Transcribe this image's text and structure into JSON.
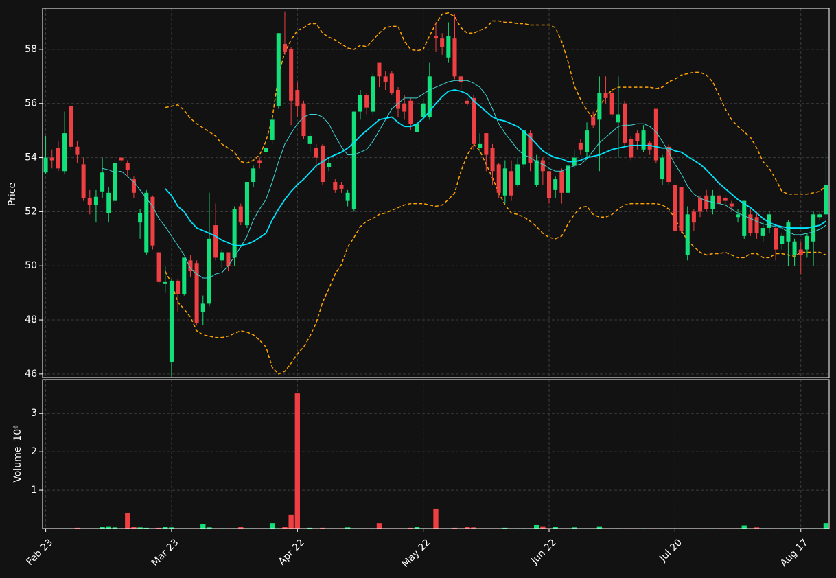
{
  "chart_data": [
    {
      "type": "candlestick",
      "ylabel": "Price",
      "ylim": [
        45.87,
        59.52
      ],
      "yticks": [
        46,
        48,
        50,
        52,
        54,
        56,
        58
      ],
      "grid": true,
      "up_color": "#12e07a",
      "down_color": "#ee3f43",
      "open": [
        53.45,
        54.0,
        54.35,
        53.5,
        55.9,
        54.4,
        53.75,
        52.5,
        52.25,
        52.75,
        51.95,
        52.4,
        54.0,
        53.8,
        53.2,
        51.6,
        50.5,
        52.55,
        50.5,
        49.35,
        46.45,
        49.45,
        48.95,
        50.2,
        50.1,
        48.3,
        48.6,
        51.5,
        50.2,
        50.5,
        50.3,
        52.2,
        51.5,
        53.1,
        53.9,
        54.2,
        54.65,
        55.9,
        58.2,
        58.0,
        56.5,
        56.0,
        54.5,
        54.35,
        54.45,
        53.65,
        53.1,
        53.0,
        52.4,
        52.1,
        55.7,
        56.3,
        55.7,
        57.5,
        57.0,
        57.1,
        56.5,
        56.0,
        56.1,
        54.95,
        55.5,
        55.5,
        58.5,
        58.4,
        57.7,
        58.4,
        57.0,
        56.1,
        56.2,
        54.35,
        54.9,
        54.35,
        53.75,
        52.6,
        53.5,
        53.0,
        53.75,
        54.9,
        53.0,
        53.9,
        53.5,
        52.8,
        53.5,
        52.7,
        53.7,
        54.55,
        54.2,
        55.5,
        55.4,
        56.4,
        56.4,
        55.3,
        56.0,
        54.7,
        54.9,
        54.3,
        54.55,
        55.8,
        53.2,
        54.4,
        53.0,
        52.9,
        50.4,
        52.0,
        52.5,
        52.6,
        52.1,
        52.6,
        52.5,
        52.3,
        51.8,
        51.1,
        51.9,
        51.8,
        51.1,
        51.4,
        51.4,
        50.8,
        50.9,
        50.4,
        50.6,
        50.6,
        50.9,
        51.8,
        51.9
      ],
      "high": [
        54.8,
        54.3,
        54.6,
        55.7,
        55.9,
        54.6,
        54.0,
        52.8,
        52.8,
        54.0,
        52.9,
        53.9,
        54.0,
        53.9,
        53.3,
        52.1,
        52.8,
        52.6,
        50.5,
        50.0,
        49.5,
        49.5,
        50.3,
        50.4,
        50.2,
        48.9,
        52.7,
        52.3,
        50.6,
        50.5,
        52.2,
        52.3,
        53.1,
        53.7,
        54.0,
        54.8,
        55.6,
        58.6,
        59.4,
        58.1,
        56.8,
        56.1,
        54.9,
        54.5,
        54.5,
        54.0,
        53.2,
        53.1,
        52.8,
        55.7,
        56.5,
        56.4,
        57.1,
        57.5,
        57.2,
        57.2,
        56.6,
        56.3,
        56.2,
        55.5,
        56.2,
        57.5,
        59.0,
        58.6,
        59.0,
        59.3,
        57.0,
        56.2,
        56.3,
        54.9,
        54.9,
        54.5,
        53.8,
        53.9,
        53.9,
        54.0,
        55.0,
        55.0,
        54.1,
        54.0,
        53.5,
        53.3,
        53.6,
        53.7,
        54.3,
        54.7,
        55.3,
        55.7,
        57.0,
        57.0,
        56.5,
        57.0,
        56.1,
        54.8,
        55.0,
        55.2,
        54.6,
        55.8,
        54.1,
        54.5,
        53.0,
        52.9,
        52.2,
        52.1,
        52.6,
        52.8,
        52.8,
        52.9,
        52.6,
        52.4,
        52.1,
        52.4,
        52.1,
        52.0,
        51.6,
        52.0,
        51.5,
        51.2,
        51.7,
        51.0,
        50.9,
        51.2,
        52.0,
        52.0,
        54.2
      ],
      "low": [
        53.4,
        53.6,
        53.5,
        53.4,
        54.3,
        53.8,
        52.4,
        51.9,
        51.6,
        52.5,
        51.6,
        52.3,
        53.8,
        53.3,
        52.5,
        51.0,
        50.4,
        50.6,
        49.3,
        49.0,
        45.9,
        48.3,
        48.9,
        49.6,
        47.8,
        47.8,
        48.5,
        50.2,
        49.9,
        49.8,
        50.0,
        51.5,
        51.4,
        52.9,
        53.6,
        54.1,
        54.5,
        55.8,
        57.8,
        55.2,
        55.5,
        54.7,
        54.2,
        53.6,
        53.0,
        53.5,
        52.7,
        52.7,
        52.2,
        52.0,
        55.4,
        55.6,
        55.6,
        56.6,
        56.5,
        56.3,
        55.5,
        55.4,
        55.0,
        54.8,
        55.4,
        55.4,
        57.9,
        57.8,
        57.5,
        56.9,
        56.5,
        55.9,
        54.3,
        54.2,
        53.5,
        53.0,
        52.5,
        52.3,
        52.4,
        52.9,
        53.6,
        53.5,
        52.9,
        53.0,
        52.3,
        52.5,
        52.3,
        52.6,
        53.6,
        54.1,
        54.0,
        55.1,
        53.5,
        56.0,
        55.5,
        54.0,
        54.4,
        53.9,
        54.3,
        54.2,
        54.1,
        53.8,
        53.0,
        53.0,
        51.2,
        51.2,
        50.2,
        51.3,
        51.8,
        52.0,
        51.9,
        52.2,
        52.2,
        52.0,
        51.6,
        51.0,
        51.1,
        51.0,
        50.9,
        51.2,
        50.2,
        50.6,
        50.0,
        50.0,
        49.7,
        50.3,
        50.0,
        51.7,
        51.8
      ],
      "close": [
        54.0,
        53.9,
        53.6,
        54.9,
        54.4,
        54.1,
        52.5,
        52.25,
        52.55,
        53.45,
        52.7,
        53.8,
        53.9,
        53.55,
        52.7,
        51.95,
        52.7,
        50.75,
        49.4,
        49.4,
        49.45,
        48.95,
        50.3,
        49.8,
        47.9,
        48.6,
        51.0,
        50.3,
        50.5,
        50.0,
        52.1,
        51.6,
        53.1,
        53.6,
        53.8,
        54.35,
        55.4,
        58.6,
        57.9,
        56.1,
        55.9,
        54.8,
        54.8,
        54.0,
        53.1,
        53.8,
        52.8,
        52.85,
        52.7,
        55.7,
        56.3,
        55.85,
        57.0,
        57.0,
        56.8,
        56.4,
        55.8,
        55.7,
        55.25,
        55.25,
        56.0,
        57.0,
        58.4,
        58.1,
        58.5,
        57.0,
        56.8,
        56.0,
        54.5,
        54.5,
        54.1,
        53.5,
        52.7,
        53.6,
        52.6,
        53.75,
        55.0,
        53.8,
        53.9,
        53.5,
        52.5,
        53.2,
        52.7,
        53.7,
        54.0,
        54.3,
        55.0,
        55.2,
        56.4,
        56.2,
        55.6,
        55.6,
        54.55,
        54.0,
        54.6,
        55.0,
        54.3,
        53.9,
        54.0,
        53.1,
        51.3,
        51.3,
        51.9,
        51.6,
        52.0,
        52.1,
        52.6,
        52.3,
        52.4,
        52.2,
        51.9,
        52.4,
        51.2,
        51.2,
        51.4,
        51.9,
        50.6,
        51.1,
        51.6,
        50.9,
        50.4,
        51.1,
        51.9,
        51.9,
        53.0
      ],
      "moving_averages": [
        {
          "color": "#3fd4d4",
          "values": [
            null,
            null,
            null,
            null,
            null,
            null,
            null,
            null,
            null,
            53.6,
            53.55,
            53.45,
            53.5,
            53.3,
            53.1,
            52.8,
            52.5,
            52.2,
            51.75,
            51.45,
            51.1,
            50.75,
            50.4,
            49.9,
            49.7,
            49.55,
            49.55,
            49.7,
            49.75,
            50.0,
            50.35,
            50.7,
            51.1,
            51.7,
            52.1,
            52.45,
            53.1,
            53.85,
            54.5,
            54.9,
            55.25,
            55.5,
            55.6,
            55.6,
            55.5,
            55.25,
            54.8,
            54.4,
            54.1,
            54.1,
            54.2,
            54.3,
            54.6,
            55.0,
            55.4,
            55.8,
            56.0,
            56.2,
            56.2,
            56.2,
            56.35,
            56.5,
            56.6,
            56.7,
            56.8,
            56.85,
            56.85,
            56.85,
            56.75,
            56.6,
            56.3,
            55.8,
            55.25,
            54.9,
            54.6,
            54.3,
            54.1,
            54.0,
            53.85,
            53.75,
            53.6,
            53.5,
            53.5,
            53.6,
            53.7,
            53.75,
            53.95,
            54.25,
            54.55,
            54.75,
            54.95,
            55.15,
            55.2,
            55.2,
            55.25,
            55.25,
            55.15,
            54.95,
            54.6,
            54.2,
            53.75,
            53.4,
            52.95,
            52.65,
            52.5,
            52.4,
            52.35,
            52.3,
            52.25,
            52.1,
            51.95,
            51.85,
            51.75,
            51.65,
            51.55,
            51.5,
            51.45,
            51.4,
            51.25,
            51.15,
            51.15,
            51.2,
            51.25,
            51.35,
            51.5
          ]
        },
        {
          "color": "#00e5ff",
          "values": [
            null,
            null,
            null,
            null,
            null,
            null,
            null,
            null,
            null,
            null,
            null,
            null,
            null,
            null,
            null,
            null,
            null,
            null,
            null,
            52.85,
            52.6,
            52.2,
            52.0,
            51.65,
            51.4,
            51.3,
            51.2,
            51.1,
            50.95,
            50.85,
            50.75,
            50.75,
            50.8,
            50.9,
            51.05,
            51.2,
            51.7,
            52.1,
            52.45,
            52.75,
            53.0,
            53.2,
            53.45,
            53.7,
            53.85,
            54.0,
            54.1,
            54.2,
            54.35,
            54.55,
            54.8,
            55.0,
            55.2,
            55.4,
            55.45,
            55.5,
            55.3,
            55.15,
            55.15,
            55.25,
            55.45,
            55.7,
            56.0,
            56.25,
            56.45,
            56.5,
            56.45,
            56.35,
            56.1,
            55.9,
            55.7,
            55.5,
            55.4,
            55.35,
            55.25,
            55.15,
            54.95,
            54.75,
            54.5,
            54.25,
            54.1,
            54.0,
            53.95,
            53.85,
            53.85,
            53.9,
            54.0,
            54.05,
            54.1,
            54.2,
            54.3,
            54.35,
            54.4,
            54.45,
            54.45,
            54.45,
            54.45,
            54.4,
            54.35,
            54.35,
            54.25,
            54.2,
            54.05,
            53.9,
            53.75,
            53.55,
            53.3,
            53.05,
            52.85,
            52.65,
            52.45,
            52.3,
            52.15,
            51.95,
            51.75,
            51.6,
            51.5,
            51.45,
            51.4,
            51.4,
            51.4,
            51.4,
            51.45,
            51.5,
            51.65
          ]
        }
      ],
      "bands": {
        "color": "#ffa500",
        "upper": [
          null,
          null,
          null,
          null,
          null,
          null,
          null,
          null,
          null,
          null,
          null,
          null,
          null,
          null,
          null,
          null,
          null,
          null,
          null,
          55.85,
          55.9,
          55.95,
          55.75,
          55.45,
          55.25,
          55.1,
          54.95,
          54.8,
          54.5,
          54.35,
          54.2,
          53.85,
          53.8,
          53.9,
          54.1,
          54.6,
          55.45,
          57.05,
          57.9,
          58.35,
          58.7,
          58.8,
          58.95,
          58.95,
          58.6,
          58.45,
          58.35,
          58.2,
          58.05,
          58.0,
          58.15,
          58.1,
          58.35,
          58.6,
          58.8,
          58.85,
          58.85,
          58.3,
          58.0,
          57.95,
          58.0,
          58.5,
          58.95,
          59.3,
          59.35,
          59.2,
          58.8,
          58.6,
          58.6,
          58.7,
          58.8,
          59.05,
          59.05,
          59.0,
          59.0,
          58.95,
          58.95,
          58.9,
          58.9,
          58.9,
          58.9,
          58.8,
          58.3,
          57.55,
          56.65,
          56.15,
          55.75,
          55.45,
          55.9,
          56.25,
          56.5,
          56.6,
          56.6,
          56.6,
          56.6,
          56.6,
          56.6,
          56.55,
          56.6,
          56.8,
          56.9,
          57.05,
          57.1,
          57.15,
          57.15,
          57.05,
          56.8,
          56.3,
          55.8,
          55.4,
          55.15,
          54.95,
          54.75,
          54.35,
          53.85,
          53.6,
          53.2,
          52.75,
          52.65,
          52.65,
          52.65,
          52.65,
          52.7,
          52.75,
          52.95
        ],
        "lower": [
          null,
          null,
          null,
          null,
          null,
          null,
          null,
          null,
          null,
          null,
          null,
          null,
          null,
          null,
          null,
          null,
          null,
          null,
          null,
          49.8,
          49.35,
          48.65,
          48.4,
          48.1,
          47.6,
          47.45,
          47.4,
          47.35,
          47.35,
          47.4,
          47.5,
          47.6,
          47.55,
          47.45,
          47.25,
          47.0,
          46.25,
          46.0,
          46.1,
          46.4,
          46.75,
          47.0,
          47.4,
          47.9,
          48.65,
          49.15,
          49.7,
          50.05,
          50.7,
          51.05,
          51.45,
          51.65,
          51.75,
          51.9,
          51.95,
          52.05,
          52.15,
          52.25,
          52.3,
          52.3,
          52.3,
          52.25,
          52.2,
          52.25,
          52.45,
          52.7,
          53.5,
          54.1,
          54.5,
          54.25,
          53.75,
          53.25,
          52.7,
          52.25,
          51.95,
          51.9,
          51.8,
          51.65,
          51.45,
          51.2,
          51.05,
          51.0,
          51.1,
          51.55,
          51.9,
          52.15,
          52.2,
          51.9,
          51.8,
          51.8,
          51.9,
          52.1,
          52.25,
          52.3,
          52.3,
          52.3,
          52.3,
          52.3,
          52.25,
          52.1,
          51.75,
          51.3,
          50.95,
          50.7,
          50.5,
          50.4,
          50.45,
          50.45,
          50.5,
          50.4,
          50.3,
          50.3,
          50.45,
          50.45,
          50.3,
          50.3,
          50.45,
          50.45,
          50.4,
          50.35,
          50.5,
          50.5,
          50.5,
          50.5,
          50.4
        ]
      }
    },
    {
      "type": "bar",
      "ylabel": "Volume",
      "y_scale_label": "10⁶",
      "ylim": [
        0,
        3.88
      ],
      "yticks": [
        1,
        2,
        3
      ],
      "grid": true,
      "xlim": [
        -0.5,
        124.5
      ],
      "xticks": [
        {
          "value": 0,
          "label": "Feb 23"
        },
        {
          "value": 20,
          "label": "Mar 23"
        },
        {
          "value": 40,
          "label": "Apr 22"
        },
        {
          "value": 60,
          "label": "May 22"
        },
        {
          "value": 80,
          "label": "Jun 22"
        },
        {
          "value": 100,
          "label": "Jul 20"
        },
        {
          "value": 120,
          "label": "Aug 17"
        }
      ],
      "values": [
        0.01,
        0.01,
        0.01,
        0.01,
        0.01,
        0.02,
        0.01,
        0.01,
        0.01,
        0.05,
        0.06,
        0.03,
        0.01,
        0.41,
        0.04,
        0.03,
        0.02,
        0.01,
        0.02,
        0.05,
        0.03,
        0.01,
        0.01,
        0.01,
        0.01,
        0.12,
        0.03,
        0.01,
        0.01,
        0.01,
        0.01,
        0.04,
        0.01,
        0.01,
        0.01,
        0.01,
        0.14,
        0.01,
        0.05,
        0.36,
        3.52,
        0.01,
        0.02,
        0.01,
        0.02,
        0.01,
        0.01,
        0.01,
        0.03,
        0.01,
        0.01,
        0.01,
        0.01,
        0.14,
        0.01,
        0.01,
        0.01,
        0.01,
        0.02,
        0.04,
        0.01,
        0.01,
        0.52,
        0.01,
        0.01,
        0.02,
        0.01,
        0.05,
        0.03,
        0.01,
        0.01,
        0.01,
        0.01,
        0.02,
        0.01,
        0.01,
        0.01,
        0.01,
        0.09,
        0.06,
        0.01,
        0.05,
        0.01,
        0.01,
        0.03,
        0.01,
        0.01,
        0.01,
        0.06,
        0.01,
        0.01,
        0.01,
        0.01,
        0.01,
        0.01,
        0.01,
        0.01,
        0.01,
        0.01,
        0.01,
        0.01,
        0.01,
        0.01,
        0.01,
        0.01,
        0.01,
        0.01,
        0.01,
        0.01,
        0.01,
        0.01,
        0.08,
        0.01,
        0.03,
        0.01,
        0.01,
        0.01,
        0.01,
        0.01,
        0.01,
        0.01,
        0.01,
        0.01,
        0.01,
        0.14
      ]
    }
  ]
}
